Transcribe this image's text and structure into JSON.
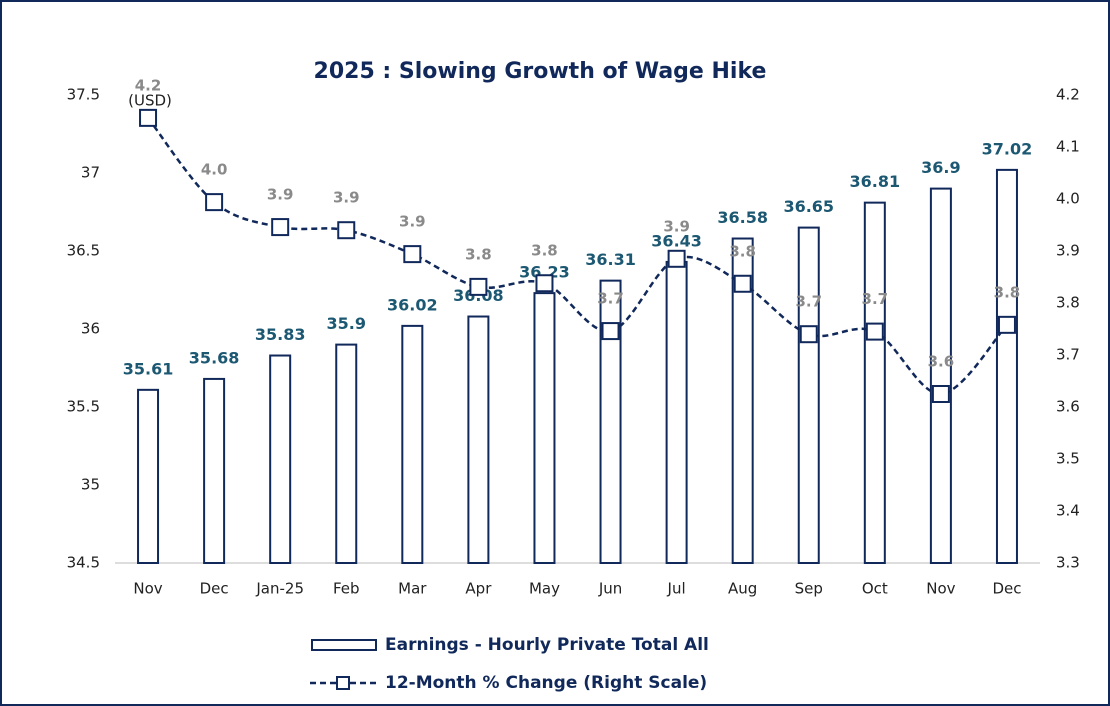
{
  "chart_data": {
    "type": "bar",
    "title": "2025 :  Slowing Growth of Wage Hike",
    "y_label": "(USD)",
    "categories": [
      "Nov",
      "Dec",
      "Jan-25",
      "Feb",
      "Mar",
      "Apr",
      "May",
      "Jun",
      "Jul",
      "Aug",
      "Sep",
      "Oct",
      "Nov",
      "Dec"
    ],
    "series": [
      {
        "name": "Earnings - Hourly Private Total All",
        "type": "bar",
        "color": "#10285a",
        "values": [
          35.61,
          35.68,
          35.83,
          35.9,
          36.02,
          36.08,
          36.23,
          36.31,
          36.43,
          36.58,
          36.65,
          36.81,
          36.9,
          37.02
        ]
      },
      {
        "name": "12-Month % Change (Right Scale)",
        "type": "line",
        "axis": "y2",
        "color": "#10285a",
        "values": [
          4.156,
          3.994,
          3.946,
          3.94,
          3.894,
          3.831,
          3.838,
          3.746,
          3.885,
          3.837,
          3.74,
          3.745,
          3.625,
          3.758
        ],
        "value_labels": [
          "4.2",
          "4.0",
          "3.9",
          "3.9",
          "3.9",
          "3.8",
          "3.8",
          "3.7",
          "3.9",
          "3.8",
          "3.7",
          "3.7",
          "3.6",
          "3.8"
        ]
      }
    ],
    "ylim": [
      34.5,
      37.5
    ],
    "yticks": [
      34.5,
      35,
      35.5,
      36,
      36.5,
      37,
      37.5
    ],
    "y2lim": [
      3.3,
      4.2
    ],
    "y2ticks": [
      3.3,
      3.4,
      3.5,
      3.6,
      3.7,
      3.8,
      3.9,
      {
        "value": 4,
        "label": "4.0"
      },
      4.1,
      4.2
    ],
    "legend": "bottom"
  }
}
